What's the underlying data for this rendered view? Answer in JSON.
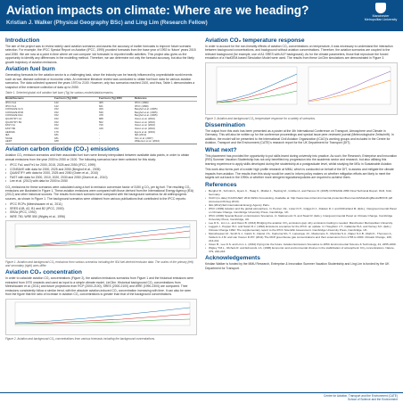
{
  "poster": {
    "title": "Aviation impacts on climate: Where are we heading?",
    "authors": "Kristian J. Walker (Physical Geography BSc) and Ling Lim (Research Fellow)",
    "logo": {
      "icon": "university-shield-icon",
      "text": "Manchester Metropolitan University"
    }
  },
  "colors": {
    "header": "#0b4f8a",
    "series_co2": "#1f77b4",
    "series_temp": "#d62728",
    "series_base": "#2ca02c"
  },
  "left": {
    "intro_heading": "Introduction",
    "intro_text": "The aim of the project was to review widely used aviation scenarios and assess the accuracy of earlier forecasts to improve future scenario selection. For example, the IPCC Special Report on Aviation (IPCC, 1999) provided forecasts from the base year of 1992 to 'future' years 2015 and 2050. We are now at a point in time where we can compare 'old forecasts' to reported traffic activities. This project also gives us the opportunity to identify any differences in the modelling method. Therefore, we can determine not only the forecast accuracy, but also the likely growth trajectory of aviation emissions.",
    "fuel_heading": "Aviation fuel burn",
    "fuel_text": "Generating forecasts for the aviation sector is a challenging task, since the industry can be heavily influenced by unpredictable world events such as war, disease outbreak or economic crisis. An extensive literature review was conducted to obtain fuel burn data for various aviation scenarios. The data collected spanned the years 1970 to 2100. However, only two scenarios reached 2100, and thus, Table 1 demonstrates a snapshot of the extensive collection of data up to 2050.",
    "table_caption": "Table 1. Selected global civil aviation fuel burn (Tg) for various models/data/scenarios.",
    "table_headers": [
      "Model/Scenario",
      "Fuel burn (Tg) 2000",
      "Fuel burn (Tg) 2050",
      "Reference"
    ],
    "table_rows": [
      [
        "IPCC Fa1",
        "142",
        "405",
        "IPCC (1999)"
      ],
      [
        "IPCC Fe1",
        "142",
        "621",
        "IPCC (1999)"
      ],
      [
        "CONSAVE ULS",
        "152",
        "329",
        "Berghof et al. (2005)"
      ],
      [
        "CONSAVE RVR",
        "152",
        "539",
        "Berghof et al. (2005)"
      ],
      [
        "CONSAVE FAC",
        "152",
        "478",
        "Berghof et al. (2005)"
      ],
      [
        "QUANTIFY A1",
        "152",
        "688",
        "Owen et al. (2010)"
      ],
      [
        "QUANTIFY B1",
        "152",
        "502",
        "Owen et al. (2010)"
      ],
      [
        "FAST A1",
        "152",
        "720",
        "Owen et al. (2010)"
      ],
      [
        "FAST B2",
        "152",
        "419",
        "Owen et al. (2010)"
      ],
      [
        "AERO2k",
        "176",
        "-",
        "Eyers et al. (2004)"
      ],
      [
        "IEA",
        "181",
        "-",
        "IEA (2012)"
      ],
      [
        "SAGE",
        "181",
        "-",
        "Kim et al. (2007)"
      ],
      [
        "AEDT",
        "188",
        "-",
        "Wilkerson et al. (2010)"
      ]
    ],
    "co2_heading": "Aviation carbon dioxide (CO₂) emissions",
    "co2_text": "Aviation CO₂ emission scenarios and their associated fuel burn were linearly interpolated between available data points, in order to obtain annual emissions from the year 2000 to 2050 or 2100. The following scenarios have been selected for this study:",
    "co2_bullets": [
      "IPCC Fa1 and Fe1 for 2000, 2015, 2025 and 2050 (IPCC, 1999)",
      "CONSAVE with data for 2000, 2025 and 2050 (Berghof et al., 2005)",
      "QUANTIFY with data for 2000, 2025 and 2050 (Owen et al., 2010)",
      "FAST with data for 2000, 2010, 2020, 2030 and 2050 (Owen et al., 2010)",
      "Lee et al. (2013) with data for 2000 to 2050"
    ],
    "co2_text2": "CO₂ emissions for these scenarios were calculated using a fuel to emission conversion factor of 3150 g CO₂ per kg fuel. The resulting CO₂ emissions are illustrated in Figure 1. These aviation emissions were compared with those derived from the International Energy Agency (IEA) (2012) and other historical sources. The results from each scenario were compared with the background scenarios for all anthropogenic sources, as shown in Figure 1. The background scenarios were obtained from various publications that contributed to the IPCC reports:",
    "bg_bullets": [
      "IPCC RCPs (Meinshausen et al., 2011)",
      "SRES A1B, A2, B1 and B2 (IPCC, 2000)",
      "IS92a (IPCC, 1992)",
      "WRE 750, WRE 550 (Wigley et al., 1996)"
    ],
    "fig1_caption": "Figure 1. Aviation and background CO₂ emissions from various scenarios including the IEA fuel-derived emission data. The scales of the primary (left) and secondary (right) axes differ.",
    "conc_heading": "Aviation CO₂ concentration",
    "conc_text": "In order to calculate aviation CO₂ concentrations (Figure 2), the aviation emissions scenarios from Figure 1 and the historical emissions were extracted from 1970 onwards and used as input to a simple climate model, LinClim. Historical background CO₂ concentrations from Meinshausen et al. (2011) and future projections from RCP (2000-2100), SRES (2000-2100) and WRE (1990-2300) are compared. Their emissions consistently follow a similar trend, with the absolute aviation-induced CO₂ concentration increasing with time. It can also be seen from the figure that the ratio of increase in aviation CO₂ concentrations is greater than that of the background concentrations.",
    "fig2_caption": "Figure 2. Aviation and background CO₂ concentrations from various forecasts including the background concentrations."
  },
  "right": {
    "temp_heading": "Aviation CO₂ temperature response",
    "temp_text": "In order to account for the non-linearity effects of aviation CO₂ concentrations on temperature, it was necessary to understand the interaction between background concentrations, and background without aviation concentrations. Therefore, the aviation scenarios are coupled to the relevant background (for example, use of A1 SRES with A1F background). As for the climate parameters, those that reproduce the forced emulation of a HadGEM-based Simulation Model were used. The results from these LinClim simulations are demonstrated in Figure 3.",
    "fig3_caption": "Figure 3. Aviation and background CO₂ temperature response for a variety of scenarios.",
    "diss_heading": "Dissemination",
    "diss_text": "The output from this work has been presented as a poster at the 4th International Conference on Transport, Atmosphere and Climate in Germany. This will also be written up for the conference proceedings and special issue peer-reviewed journal (Meteorologische Zeitschrift). In addition, the model will be presented to the International Civil Aviation Organization (ICAO)'s working groups and included in the Centre for Aviation, Transport and the Environment (CATE)'s research report for the UK Department for Transport (DfT).",
    "next_heading": "What next?",
    "next_text": "This placement has provided the opportunity to put skills learnt during university into practice. As such, the Research, Enterprise and Innovation (REI) Summer Vacation Studentship has not only benefited my progression into the academic sector and research, but also utilising this learning experience to apply skills developed during the studentship at a postgraduate level, whilst studying the MSc in Sustainable Aviation.",
    "next_text2": "This work also forms part of a wider high profile research at MMU, which is conducted on behalf of the DfT, to assess and mitigate the climate impacts from aviation. The results from this study would be used to inform policy makers on whether mitigation efforts are likely to meet the targets set out back in the 1990s or whether more stringent regulations/policies are required to achieve them.",
    "ref_heading": "References",
    "refs": [
      "Berghof R., Schmitt A., Eyers C., Haag K., Middel J., Hepting M., Grübler A. and Hancox R. (2005) CONSAVE 2050 Final Technical Report, DLR, Köln, Germany.",
      "ICAO (no date) ICAO/CAEP, 2011 FESG Forecasting. Available at: http://www.icao.int/environmental-protection/Documents/ModellingBooks/BOOK.pdf (Accessed 20 Aug 2013).",
      "IEA (2012) IEA International Energy Agency Paris.",
      "IPCC (1999) Aviation and the global atmosphere, in: Penner J.E., Lister D.H., Griggs D.J., Dokken D.J. and McFarland M. (Eds.), Intergovernmental Panel on Climate Change. Cambridge University Press, Cambridge, UK.",
      "IPCC (2000) Special Report on Emissions Scenarios, in: Nakicenovic N. and Swart R. (Eds.), Intergovernmental Panel on Climate Change. Cambridge University Press, Cambridge, UK.",
      "Lee D.S., Lim L.L. and Owen B. (2013) Bridging the aviation CO₂ emissions gap: why emissions trading is needed. Manchester Metropolitan University.",
      "Leggett J., Pepper W.J. and Swart R.J. (1992) Emissions scenarios for the IPCC: an update. In: Houghton J.T., Callander B.A. and Varney S.K. (Eds.) Climate Change 1992: The supplementary report to the IPCC Scientific Assessment. Cambridge University Press, Cambridge, UK.",
      "Meinshausen M., Smith S.J., Calvin K., Daniel J.S., Kainuma M.L.T., Lamarque J.F., Matsumoto K., Montzka S.A., Raper S.C.B., Riahi K., Thomson A., Velders G.J.M. and van Vuuren D.P.P. (2011) The RCP greenhouse gas concentrations and their extensions from 1765 to 2300. Climatic Change, 109, 213-241.",
      "Owen B., Lee D.S. and Lim L.L. (2010) Flying into the future: Aviation Emissions Scenarios to 2050. Environmental Science & Technology, 44, 2255-2260.",
      "Wigley T.M.L., Richels R. and Edmonds J.A. (1996) Economic and environmental choices in the stabilization of atmospheric CO₂ concentrations. Nature, 379, 240-243."
    ],
    "ack_heading": "Acknowledgements",
    "ack_text": "Kristian Walker is funded by the MMU Research, Enterprise & Innovation Summer Vacation Studentship and Ling Lim is funded by the UK Department for Transport.",
    "footer_line1": "Centre for Aviation, Transport and the Environment (CATE)",
    "footer_line2": "School of Science and the Environment",
    "footer_line3": "Manchester Metropolitan University, United Kingdom"
  }
}
